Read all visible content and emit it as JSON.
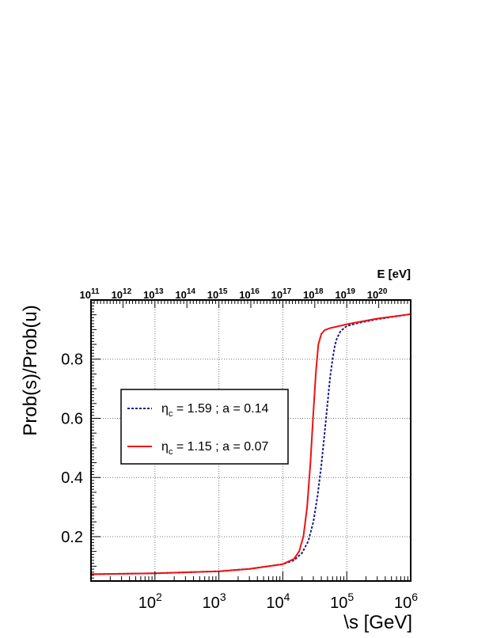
{
  "chart_data": {
    "type": "line",
    "ylabel": "Prob(s)/Prob(u)",
    "xlabel": "\\s [GeV]",
    "top_axis_label": "E [eV]",
    "x_scale": "log",
    "xlim": [
      10,
      1000000
    ],
    "ylim": [
      0.05,
      1.0
    ],
    "grid": true,
    "legend_position": "middle-left",
    "x_ticks": [
      {
        "value": 100,
        "base": "10",
        "exp": "2"
      },
      {
        "value": 1000,
        "base": "10",
        "exp": "3"
      },
      {
        "value": 10000,
        "base": "10",
        "exp": "4"
      },
      {
        "value": 100000,
        "base": "10",
        "exp": "5"
      },
      {
        "value": 1000000,
        "base": "10",
        "exp": "6"
      }
    ],
    "y_ticks": [
      {
        "value": 0.2,
        "label": "0.2"
      },
      {
        "value": 0.4,
        "label": "0.4"
      },
      {
        "value": 0.6,
        "label": "0.6"
      },
      {
        "value": 0.8,
        "label": "0.8"
      }
    ],
    "top_ticks": [
      {
        "value": 10.0,
        "base": "10",
        "exp": "11"
      },
      {
        "value": 31.6,
        "base": "10",
        "exp": "12"
      },
      {
        "value": 100,
        "base": "10",
        "exp": "13"
      },
      {
        "value": 316,
        "base": "10",
        "exp": "14"
      },
      {
        "value": 1000,
        "base": "10",
        "exp": "15"
      },
      {
        "value": 3162,
        "base": "10",
        "exp": "16"
      },
      {
        "value": 10000,
        "base": "10",
        "exp": "17"
      },
      {
        "value": 31623,
        "base": "10",
        "exp": "18"
      },
      {
        "value": 100000,
        "base": "10",
        "exp": "19"
      },
      {
        "value": 316228,
        "base": "10",
        "exp": "20"
      }
    ],
    "series": [
      {
        "name_symbol": "η",
        "name_sub": "c",
        "name_rest": " = 1.59 ; a = 0.14",
        "color": "#1a1a8c",
        "style": "dashed",
        "x": [
          10,
          100,
          1000,
          3000,
          10000,
          15000,
          20000,
          25000,
          30000,
          35000,
          40000,
          45000,
          50000,
          55000,
          60000,
          65000,
          70000,
          80000,
          100000,
          150000,
          300000,
          1000000
        ],
        "y": [
          0.073,
          0.076,
          0.083,
          0.091,
          0.107,
          0.12,
          0.145,
          0.185,
          0.25,
          0.34,
          0.44,
          0.55,
          0.65,
          0.74,
          0.8,
          0.845,
          0.87,
          0.895,
          0.912,
          0.922,
          0.935,
          0.952
        ]
      },
      {
        "name_symbol": "η",
        "name_sub": "c",
        "name_rest": " = 1.15 ; a = 0.07",
        "color": "#ee1111",
        "style": "solid",
        "x": [
          10,
          100,
          1000,
          3000,
          10000,
          15000,
          18000,
          21000,
          24000,
          27000,
          30000,
          33000,
          36000,
          40000,
          45000,
          55000,
          70000,
          100000,
          150000,
          300000,
          1000000
        ],
        "y": [
          0.073,
          0.076,
          0.083,
          0.091,
          0.107,
          0.125,
          0.15,
          0.2,
          0.3,
          0.45,
          0.62,
          0.76,
          0.85,
          0.885,
          0.898,
          0.905,
          0.91,
          0.918,
          0.925,
          0.937,
          0.952
        ]
      }
    ]
  }
}
